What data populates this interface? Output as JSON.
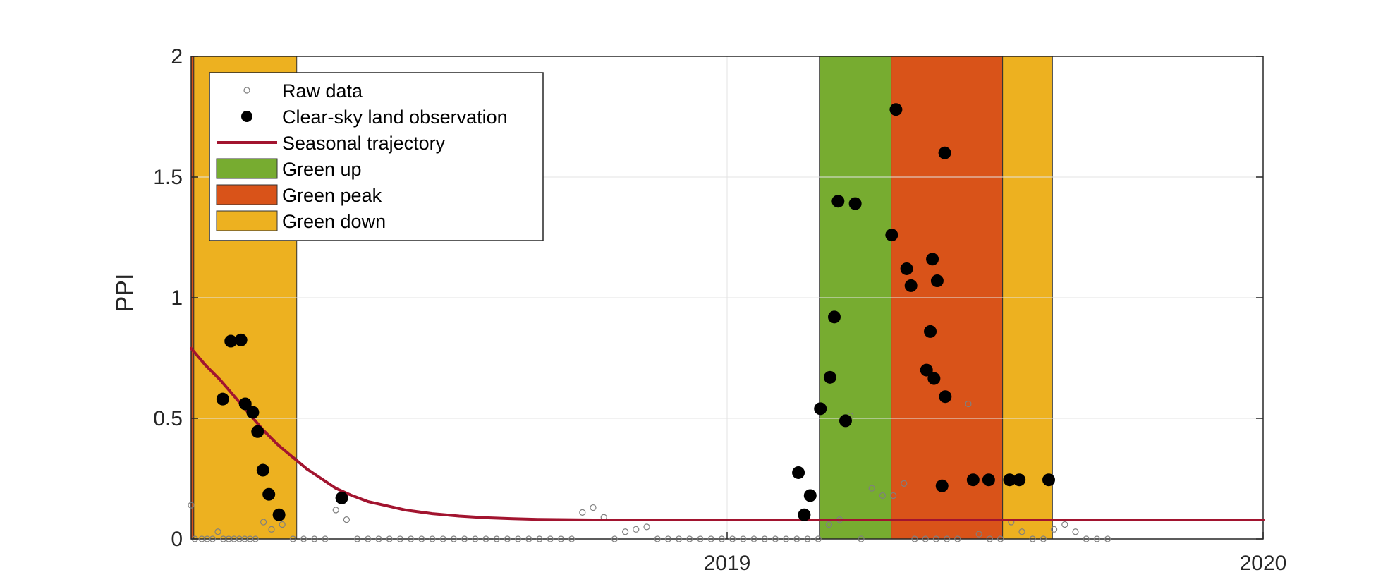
{
  "chart_data": {
    "type": "line",
    "ylabel": "PPI",
    "xlabel": "",
    "xlim": [
      2018.0,
      2020.0
    ],
    "ylim": [
      0,
      2
    ],
    "x_ticks": [
      2019,
      2020
    ],
    "x_tick_labels": [
      "2019",
      "2020"
    ],
    "y_ticks": [
      0,
      0.5,
      1,
      1.5,
      2
    ],
    "y_tick_labels": [
      "0",
      "0.5",
      "1",
      "1.5",
      "2"
    ],
    "grid": true,
    "legend_position": "top-left",
    "colors": {
      "raw": "#7f7f7f",
      "clear_sky": "#000000",
      "trajectory": "#a2142f",
      "green_up": "#77ac30",
      "green_peak": "#d95319",
      "green_down": "#edb120"
    },
    "legend": [
      {
        "label": "Raw data",
        "kind": "open-marker"
      },
      {
        "label": "Clear-sky land observation",
        "kind": "filled-marker"
      },
      {
        "label": "Seasonal trajectory",
        "kind": "line"
      },
      {
        "label": "Green up",
        "kind": "patch",
        "color": "#77ac30"
      },
      {
        "label": "Green peak",
        "kind": "patch",
        "color": "#d95319"
      },
      {
        "label": "Green down",
        "kind": "patch",
        "color": "#edb120"
      }
    ],
    "phases": [
      {
        "name": "Green peak",
        "x0": 2018.0,
        "x1": 2018.005
      },
      {
        "name": "Green down",
        "x0": 2018.005,
        "x1": 2018.197
      },
      {
        "name": "Green up",
        "x0": 2019.172,
        "x1": 2019.306
      },
      {
        "name": "Green peak",
        "x0": 2019.306,
        "x1": 2019.514
      },
      {
        "name": "Green down",
        "x0": 2019.514,
        "x1": 2019.607
      }
    ],
    "series": [
      {
        "name": "Seasonal trajectory",
        "x": [
          2018.0,
          2018.027,
          2018.054,
          2018.081,
          2018.108,
          2018.135,
          2018.162,
          2018.189,
          2018.216,
          2018.243,
          2018.27,
          2018.3,
          2018.33,
          2018.36,
          2018.4,
          2018.45,
          2018.5,
          2018.55,
          2018.6,
          2018.65,
          2018.7,
          2018.75,
          2018.8,
          2018.85,
          2018.9,
          2018.95,
          2019.0,
          2019.05,
          2019.1,
          2019.15,
          2019.2,
          2019.25,
          2019.3,
          2019.35,
          2019.4,
          2019.45,
          2019.5,
          2019.55,
          2019.6,
          2019.65,
          2019.7,
          2019.75,
          2019.8,
          2019.85,
          2019.9,
          2019.95,
          2020.0
        ],
        "y": [
          0.79,
          0.72,
          0.66,
          0.59,
          0.52,
          0.45,
          0.39,
          0.34,
          0.29,
          0.25,
          0.21,
          0.18,
          0.155,
          0.14,
          0.12,
          0.105,
          0.095,
          0.088,
          0.084,
          0.081,
          0.08,
          0.079,
          0.079,
          0.079,
          0.079,
          0.079,
          0.079,
          0.079,
          0.079,
          0.079,
          0.079,
          0.079,
          0.079,
          0.079,
          0.079,
          0.079,
          0.079,
          0.079,
          0.079,
          0.079,
          0.079,
          0.079,
          0.079,
          0.079,
          0.079,
          0.079,
          0.079
        ]
      },
      {
        "name": "Clear-sky land observation",
        "x": [
          2018.059,
          2018.074,
          2018.093,
          2018.101,
          2018.115,
          2018.124,
          2018.134,
          2018.145,
          2018.164,
          2018.281,
          2019.133,
          2019.144,
          2019.155,
          2019.174,
          2019.192,
          2019.2,
          2019.207,
          2019.221,
          2019.239,
          2019.307,
          2019.315,
          2019.335,
          2019.343,
          2019.372,
          2019.383,
          2019.386,
          2019.392,
          2019.406,
          2019.401,
          2019.407,
          2019.379,
          2019.459,
          2019.488,
          2019.527,
          2019.545,
          2019.6
        ],
        "y": [
          0.58,
          0.82,
          0.825,
          0.56,
          0.525,
          0.445,
          0.285,
          0.185,
          0.1,
          0.17,
          0.275,
          0.1,
          0.18,
          0.54,
          0.67,
          0.92,
          1.4,
          0.49,
          1.39,
          1.26,
          1.78,
          1.12,
          1.05,
          0.7,
          1.16,
          0.665,
          1.07,
          1.6,
          0.22,
          0.59,
          0.86,
          0.245,
          0.245,
          0.245,
          0.245,
          0.245
        ]
      },
      {
        "name": "Raw data",
        "x": [
          2018.0,
          2018.007,
          2018.02,
          2018.03,
          2018.04,
          2018.05,
          2018.06,
          2018.07,
          2018.08,
          2018.09,
          2018.1,
          2018.11,
          2018.12,
          2018.135,
          2018.15,
          2018.17,
          2018.19,
          2018.21,
          2018.23,
          2018.25,
          2018.27,
          2018.29,
          2018.31,
          2018.33,
          2018.35,
          2018.37,
          2018.39,
          2018.41,
          2018.43,
          2018.45,
          2018.47,
          2018.49,
          2018.51,
          2018.53,
          2018.55,
          2018.57,
          2018.59,
          2018.61,
          2018.63,
          2018.65,
          2018.67,
          2018.69,
          2018.71,
          2018.73,
          2018.75,
          2018.77,
          2018.79,
          2018.81,
          2018.83,
          2018.85,
          2018.87,
          2018.89,
          2018.91,
          2018.93,
          2018.95,
          2018.97,
          2018.99,
          2019.01,
          2019.03,
          2019.05,
          2019.07,
          2019.09,
          2019.11,
          2019.13,
          2019.15,
          2019.17,
          2019.19,
          2019.21,
          2019.23,
          2019.25,
          2019.27,
          2019.29,
          2019.31,
          2019.33,
          2019.35,
          2019.37,
          2019.39,
          2019.41,
          2019.43,
          2019.45,
          2019.47,
          2019.49,
          2019.51,
          2019.53,
          2019.55,
          2019.57,
          2019.59,
          2019.61,
          2019.63,
          2019.65,
          2019.67,
          2019.69,
          2019.71
        ],
        "y": [
          0.14,
          0.0,
          0.0,
          0.0,
          0.0,
          0.03,
          0.0,
          0.0,
          0.0,
          0.0,
          0.0,
          0.0,
          0.0,
          0.07,
          0.04,
          0.06,
          0.0,
          0.0,
          0.0,
          0.0,
          0.12,
          0.08,
          0.0,
          0.0,
          0.0,
          0.0,
          0.0,
          0.0,
          0.0,
          0.0,
          0.0,
          0.0,
          0.0,
          0.0,
          0.0,
          0.0,
          0.0,
          0.0,
          0.0,
          0.0,
          0.0,
          0.0,
          0.0,
          0.11,
          0.13,
          0.09,
          0.0,
          0.03,
          0.04,
          0.05,
          0.0,
          0.0,
          0.0,
          0.0,
          0.0,
          0.0,
          0.0,
          0.0,
          0.0,
          0.0,
          0.0,
          0.0,
          0.0,
          0.0,
          0.0,
          0.0,
          0.06,
          0.08,
          0.51,
          0.0,
          0.21,
          0.18,
          0.18,
          0.23,
          0.0,
          0.0,
          0.0,
          0.0,
          0.0,
          0.56,
          0.02,
          0.0,
          0.0,
          0.07,
          0.03,
          0.0,
          0.0,
          0.04,
          0.06,
          0.03,
          0.0,
          0.0,
          0.0
        ]
      }
    ]
  }
}
